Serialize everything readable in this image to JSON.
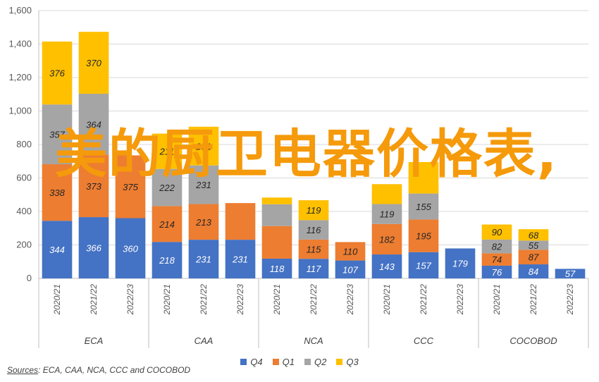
{
  "chart_data": {
    "type": "bar",
    "stacked": true,
    "ylim": [
      0,
      1600
    ],
    "yticks": [
      "0",
      "200",
      "400",
      "600",
      "800",
      "1,000",
      "1,200",
      "1,400",
      "1,600"
    ],
    "grid": true,
    "legend_position": "bottom",
    "groups": [
      {
        "name": "ECA",
        "categories": [
          "2020/21",
          "2021/22",
          "2022/23"
        ]
      },
      {
        "name": "CAA",
        "categories": [
          "2020/21",
          "2021/22",
          "2022/23"
        ]
      },
      {
        "name": "NCA",
        "categories": [
          "2020/21",
          "2021/22",
          "2022/23"
        ]
      },
      {
        "name": "CCC",
        "categories": [
          "2020/21",
          "2021/22",
          "2022/23"
        ]
      },
      {
        "name": "COCOBOD",
        "categories": [
          "2020/21",
          "2021/22",
          "2022/23"
        ]
      }
    ],
    "series": [
      {
        "name": "Q4",
        "color": "#4472c4",
        "values": [
          344,
          366,
          360,
          218,
          231,
          231,
          118,
          117,
          107,
          143,
          157,
          179,
          76,
          84,
          57
        ]
      },
      {
        "name": "Q1",
        "color": "#ed7d31",
        "values": [
          338,
          373,
          375,
          214,
          213,
          219,
          195,
          115,
          110,
          182,
          195,
          0,
          74,
          87,
          0
        ]
      },
      {
        "name": "Q2",
        "color": "#a5a5a5",
        "values": [
          357,
          364,
          0,
          222,
          231,
          0,
          130,
          116,
          0,
          119,
          155,
          0,
          82,
          55,
          0
        ]
      },
      {
        "name": "Q3",
        "color": "#ffc000",
        "values": [
          376,
          370,
          0,
          211,
          231,
          0,
          40,
          119,
          0,
          119,
          188,
          0,
          90,
          68,
          0
        ]
      }
    ],
    "data_labels": [
      [
        "344",
        "366",
        "360",
        "218",
        "231",
        "231",
        "118",
        "117",
        "107",
        "143",
        "157",
        "179",
        "76",
        "84",
        "57"
      ],
      [
        "338",
        "373",
        "375",
        "214",
        "213",
        "",
        "",
        "115",
        "110",
        "182",
        "195",
        "",
        "74",
        "87",
        ""
      ],
      [
        "357",
        "364",
        "",
        "222",
        "231",
        "",
        "",
        "116",
        "",
        "119",
        "155",
        "",
        "82",
        "55",
        ""
      ],
      [
        "376",
        "370",
        "",
        "211",
        "231",
        "",
        "",
        "119",
        "",
        "",
        "",
        "",
        "90",
        "68",
        ""
      ]
    ]
  },
  "sources": {
    "label": "Sources",
    "text": ": ECA, CAA, NCA, CCC and COCOBOD"
  },
  "overlay": {
    "title": "美的厨卫电器价格表,"
  }
}
